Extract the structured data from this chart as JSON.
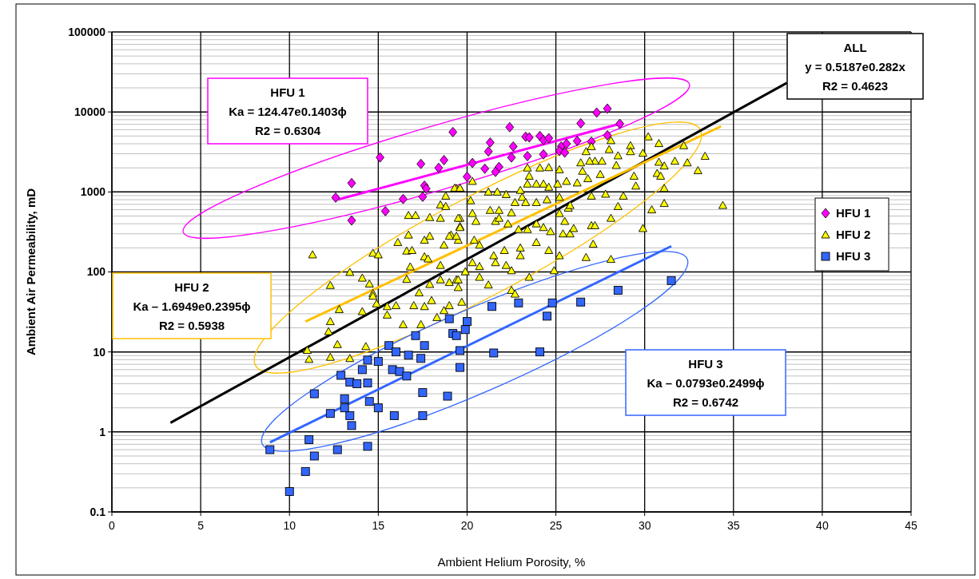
{
  "chart_data": {
    "type": "scatter",
    "xlabel": "Ambient Helium Porosity, %",
    "ylabel": "Ambient Air Permeability, mD",
    "xlim": [
      0,
      45
    ],
    "xticks": [
      0,
      5,
      10,
      15,
      20,
      25,
      30,
      35,
      40,
      45
    ],
    "ylim": [
      0.1,
      100000
    ],
    "yticks": [
      0.1,
      1,
      10,
      100,
      1000,
      10000,
      100000
    ],
    "log": "y",
    "grid": true,
    "legend": "right",
    "annotations": [
      "ALL\ny = 0.5187e0.282x\nR2 = 0.4623",
      "HFU 1\nKa = 124.47e0.1403ϕ\nR2 = 0.6304",
      "HFU 2\nKa – 1.6949e0.2395ϕ\nR2 = 0.5938",
      "HFU 3\nKa – 0.0793e0.2499ϕ\nR2 = 0.6742"
    ],
    "series": [
      {
        "name": "HFU 1",
        "color": "#ff00ff",
        "marker": "diamond",
        "x": [
          19.2,
          15.1,
          17.4,
          18.7,
          18.4,
          13.5,
          12.6,
          17.6,
          17.7,
          16.4,
          17.5,
          15.4,
          13.5,
          27.3,
          27.9,
          26.4,
          28.6,
          22.4,
          23.3,
          23.5,
          24.1,
          24.3,
          24.6,
          21.3,
          22.6,
          21.2,
          22.5,
          23.4,
          24.3,
          20.3,
          21.0,
          21.8,
          21.6,
          20.0,
          25.3,
          25.6,
          26.2,
          27.0,
          27.9,
          25.2,
          25.5
        ],
        "values": [
          5600,
          2700,
          2240,
          2500,
          2000,
          1290,
          850,
          1200,
          1100,
          815,
          870,
          575,
          440,
          9800,
          11000,
          7200,
          7100,
          6450,
          4900,
          4800,
          5000,
          4450,
          4700,
          4150,
          3700,
          3200,
          2700,
          2800,
          2950,
          2300,
          1950,
          2050,
          1780,
          1550,
          3700,
          4000,
          4350,
          4250,
          5100,
          3250,
          3100
        ]
      },
      {
        "name": "HFU 2",
        "color": "#ffff00",
        "marker": "triangle",
        "x": [
          30.2,
          29.2,
          29.2,
          28.0,
          26.7,
          27.0,
          28.1,
          29.9,
          30.8,
          32.2,
          33.4,
          31.7,
          32.4,
          33.0,
          31.1,
          30.8,
          30.7,
          30.9,
          29.4,
          29.5,
          28.5,
          28.4,
          27.6,
          27.2,
          26.9,
          26.4,
          26.5,
          27.5,
          26.8,
          26.2,
          25.6,
          25.1,
          25.2,
          24.6,
          24.1,
          23.4,
          23.5,
          23.9,
          24.3,
          24.6,
          23.4,
          23.0,
          23.1,
          23.3,
          22.7,
          22.5,
          21.8,
          21.3,
          21.2,
          21.7,
          22.2,
          20.3,
          20.2,
          19.4,
          19.6,
          20.3,
          20.5,
          19.6,
          19.6,
          19.1,
          19.5,
          20.4,
          20.7,
          21.6,
          21.8,
          22.3,
          22.9,
          23.4,
          23.9,
          24.3,
          24.7,
          25.4,
          25.8,
          26.0,
          25.5,
          25.2,
          25.7,
          27.0,
          27.8,
          28.8,
          28.5,
          28.1,
          27.0,
          27.2,
          25.8,
          25.2,
          24.5,
          23.9,
          23.9,
          23.0,
          23.0,
          22.1,
          21.5,
          21.6,
          22.2,
          22.5,
          20.3,
          20.7,
          20.7,
          21.2,
          19.9,
          19.4,
          19.5,
          24.6,
          25.2,
          26.7,
          27.1,
          28.1,
          29.9,
          30.4,
          31.1,
          31.1,
          34.4,
          24.9,
          23.5,
          22.5,
          22.7,
          19.3,
          19.6,
          18.8,
          18.5,
          18.8,
          16.7,
          17.1,
          17.9,
          18.5,
          19.5,
          19.6,
          16.7,
          17.9,
          19.0,
          19.4,
          17.6,
          16.1,
          18.7,
          16.6,
          16.9,
          17.6,
          17.8,
          11.3,
          14.7,
          15.0,
          16.8,
          18.5,
          13.4,
          14.1,
          12.3,
          14.5,
          14.7,
          16.6,
          17.3,
          17.9,
          18.5,
          19.0,
          19.5,
          14.7,
          14.1,
          12.8,
          12.3,
          12.2,
          12.7,
          11.0,
          11.1,
          12.3,
          13.4,
          14.3,
          15.5,
          15.5,
          16.0,
          16.4,
          17.4,
          17.0,
          17.6,
          18.0,
          18.3,
          18.7,
          19.0,
          19.7,
          14.9
        ],
        "values": [
          4900,
          3800,
          3200,
          3400,
          3200,
          3700,
          4400,
          3060,
          4040,
          3800,
          2800,
          2430,
          2320,
          1850,
          2120,
          2360,
          1710,
          1580,
          1580,
          1190,
          2840,
          2150,
          2430,
          2430,
          2430,
          2320,
          1820,
          1660,
          1470,
          1300,
          1360,
          1260,
          1900,
          2020,
          2000,
          2000,
          1580,
          1260,
          1260,
          1150,
          1260,
          1050,
          860,
          740,
          740,
          550,
          590,
          590,
          1000,
          1000,
          930,
          540,
          780,
          1110,
          1110,
          1360,
          430,
          470,
          370,
          290,
          250,
          250,
          217,
          430,
          470,
          400,
          340,
          340,
          400,
          360,
          320,
          300,
          300,
          350,
          430,
          540,
          630,
          890,
          940,
          890,
          660,
          470,
          380,
          380,
          680,
          860,
          800,
          740,
          234,
          200,
          160,
          186,
          160,
          131,
          121,
          104,
          131,
          117,
          86,
          69,
          101,
          80,
          64,
          186,
          160,
          152,
          223,
          144,
          350,
          600,
          720,
          1110,
          680,
          104,
          86,
          59,
          53,
          1120,
          1120,
          890,
          690,
          660,
          510,
          510,
          480,
          470,
          470,
          360,
          290,
          280,
          280,
          280,
          250,
          234,
          217,
          183,
          186,
          155,
          146,
          164,
          172,
          164,
          116,
          121,
          99,
          84,
          68,
          71,
          54,
          81,
          55,
          70,
          80,
          74,
          80,
          50,
          32,
          34,
          24,
          18,
          12.4,
          10.5,
          8.1,
          8.6,
          8.3,
          11.7,
          29,
          37,
          38,
          22,
          22,
          38,
          37,
          44,
          27,
          33,
          38,
          42,
          40
        ]
      },
      {
        "name": "HFU 3",
        "color": "#3366ff",
        "marker": "square",
        "x": [
          10.0,
          10.9,
          8.9,
          11.4,
          12.7,
          14.4,
          11.1,
          13.5,
          13.4,
          12.3,
          13.1,
          13.1,
          11.4,
          14.5,
          15.0,
          15.9,
          17.5,
          17.5,
          18.9,
          12.9,
          13.4,
          13.8,
          14.4,
          14.1,
          14.4,
          15.0,
          15.6,
          16.0,
          16.7,
          17.4,
          15.8,
          16.2,
          16.6,
          17.1,
          17.6,
          19.0,
          19.2,
          19.4,
          19.6,
          19.6,
          31.5,
          28.5,
          26.4,
          24.8,
          22.9,
          24.5,
          21.5,
          24.1,
          20.0,
          19.9,
          21.4
        ],
        "values": [
          0.18,
          0.32,
          0.6,
          0.5,
          0.6,
          0.66,
          0.8,
          1.2,
          1.6,
          1.7,
          2.0,
          2.6,
          3.0,
          2.4,
          2.0,
          1.6,
          1.6,
          3.1,
          2.8,
          5.1,
          4.2,
          4.0,
          4.1,
          6.0,
          7.9,
          7.6,
          12,
          10,
          9.1,
          8.3,
          6.0,
          5.7,
          5.0,
          16,
          12,
          26,
          17,
          16,
          10.4,
          6.4,
          78,
          59,
          42,
          41,
          41,
          28,
          9.7,
          10,
          24,
          19,
          37
        ]
      },
      {
        "type": "line",
        "color": "#000000",
        "x": [
          3.3,
          38
        ],
        "values": [
          1.3,
          23000
        ]
      },
      {
        "type": "line",
        "color": "#ff00ff",
        "x": [
          12.7,
          28.6
        ],
        "values": [
          800,
          7100
        ]
      },
      {
        "type": "line",
        "color": "#ffc000",
        "x": [
          10.9,
          34.3
        ],
        "values": [
          24,
          6600
        ]
      },
      {
        "type": "line",
        "color": "#3366ff",
        "x": [
          8.9,
          31.5
        ],
        "values": [
          0.74,
          210
        ]
      }
    ]
  }
}
